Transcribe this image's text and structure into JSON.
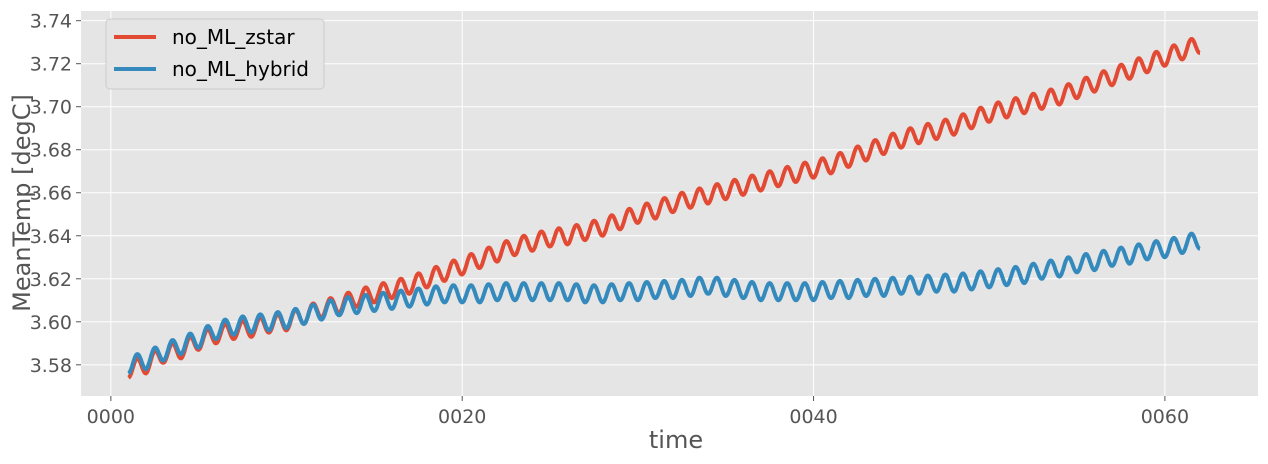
{
  "chart_data": {
    "type": "line",
    "title": "",
    "xlabel": "time",
    "ylabel": "MeanTemp [degC]",
    "x_range_years": [
      -1.7,
      65.3
    ],
    "xlim_years": [
      -1.7,
      65.3
    ],
    "ylim": [
      3.5655,
      3.7445
    ],
    "x_ticks": [
      {
        "label": "0000",
        "year": 0
      },
      {
        "label": "0020",
        "year": 20
      },
      {
        "label": "0040",
        "year": 40
      },
      {
        "label": "0060",
        "year": 60
      }
    ],
    "y_ticks": [
      {
        "label": "3.58",
        "value": 3.58
      },
      {
        "label": "3.60",
        "value": 3.6
      },
      {
        "label": "3.62",
        "value": 3.62
      },
      {
        "label": "3.64",
        "value": 3.64
      },
      {
        "label": "3.66",
        "value": 3.66
      },
      {
        "label": "3.68",
        "value": 3.68
      },
      {
        "label": "3.70",
        "value": 3.7
      },
      {
        "label": "3.72",
        "value": 3.72
      },
      {
        "label": "3.74",
        "value": 3.74
      }
    ],
    "grid": true,
    "legend_position": "top-left",
    "series": [
      {
        "name": "no_ML_zstar",
        "color": "#E24A33",
        "x_years": [
          1,
          2,
          3,
          4,
          5,
          6,
          7,
          8,
          9,
          10,
          11,
          12,
          13,
          14,
          15,
          16,
          17,
          18,
          19,
          20,
          21,
          22,
          23,
          24,
          25,
          26,
          27,
          28,
          29,
          30,
          31,
          32,
          33,
          34,
          35,
          36,
          37,
          38,
          39,
          40,
          41,
          42,
          43,
          44,
          45,
          46,
          47,
          48,
          49,
          50,
          51,
          52,
          53,
          54,
          55,
          56,
          57,
          58,
          59,
          60,
          61,
          62
        ],
        "trend": [
          3.578,
          3.58,
          3.585,
          3.587,
          3.591,
          3.594,
          3.596,
          3.597,
          3.599,
          3.6,
          3.603,
          3.606,
          3.608,
          3.611,
          3.613,
          3.615,
          3.617,
          3.62,
          3.623,
          3.626,
          3.629,
          3.632,
          3.635,
          3.637,
          3.639,
          3.64,
          3.642,
          3.644,
          3.647,
          3.65,
          3.652,
          3.655,
          3.657,
          3.659,
          3.661,
          3.663,
          3.665,
          3.667,
          3.669,
          3.671,
          3.673,
          3.676,
          3.679,
          3.682,
          3.685,
          3.687,
          3.689,
          3.691,
          3.694,
          3.697,
          3.699,
          3.701,
          3.703,
          3.705,
          3.708,
          3.711,
          3.714,
          3.717,
          3.72,
          3.723,
          3.726,
          3.729
        ],
        "seasonal_amplitude": 0.004
      },
      {
        "name": "no_ML_hybrid",
        "color": "#348ABD",
        "x_years": [
          1,
          2,
          3,
          4,
          5,
          6,
          7,
          8,
          9,
          10,
          11,
          12,
          13,
          14,
          15,
          16,
          17,
          18,
          19,
          20,
          21,
          22,
          23,
          24,
          25,
          26,
          27,
          28,
          29,
          30,
          31,
          32,
          33,
          34,
          35,
          36,
          37,
          38,
          39,
          40,
          41,
          42,
          43,
          44,
          45,
          46,
          47,
          48,
          49,
          50,
          51,
          52,
          53,
          54,
          55,
          56,
          57,
          58,
          59,
          60,
          61,
          62
        ],
        "trend": [
          3.58,
          3.582,
          3.586,
          3.589,
          3.592,
          3.596,
          3.598,
          3.599,
          3.6,
          3.601,
          3.603,
          3.605,
          3.607,
          3.608,
          3.609,
          3.61,
          3.611,
          3.612,
          3.613,
          3.613,
          3.613,
          3.614,
          3.614,
          3.614,
          3.614,
          3.614,
          3.613,
          3.613,
          3.614,
          3.614,
          3.615,
          3.615,
          3.616,
          3.617,
          3.616,
          3.615,
          3.614,
          3.614,
          3.614,
          3.614,
          3.615,
          3.615,
          3.616,
          3.616,
          3.617,
          3.617,
          3.618,
          3.618,
          3.619,
          3.62,
          3.621,
          3.622,
          3.624,
          3.625,
          3.627,
          3.628,
          3.63,
          3.631,
          3.633,
          3.634,
          3.636,
          3.638
        ],
        "seasonal_amplitude": 0.004
      }
    ]
  }
}
